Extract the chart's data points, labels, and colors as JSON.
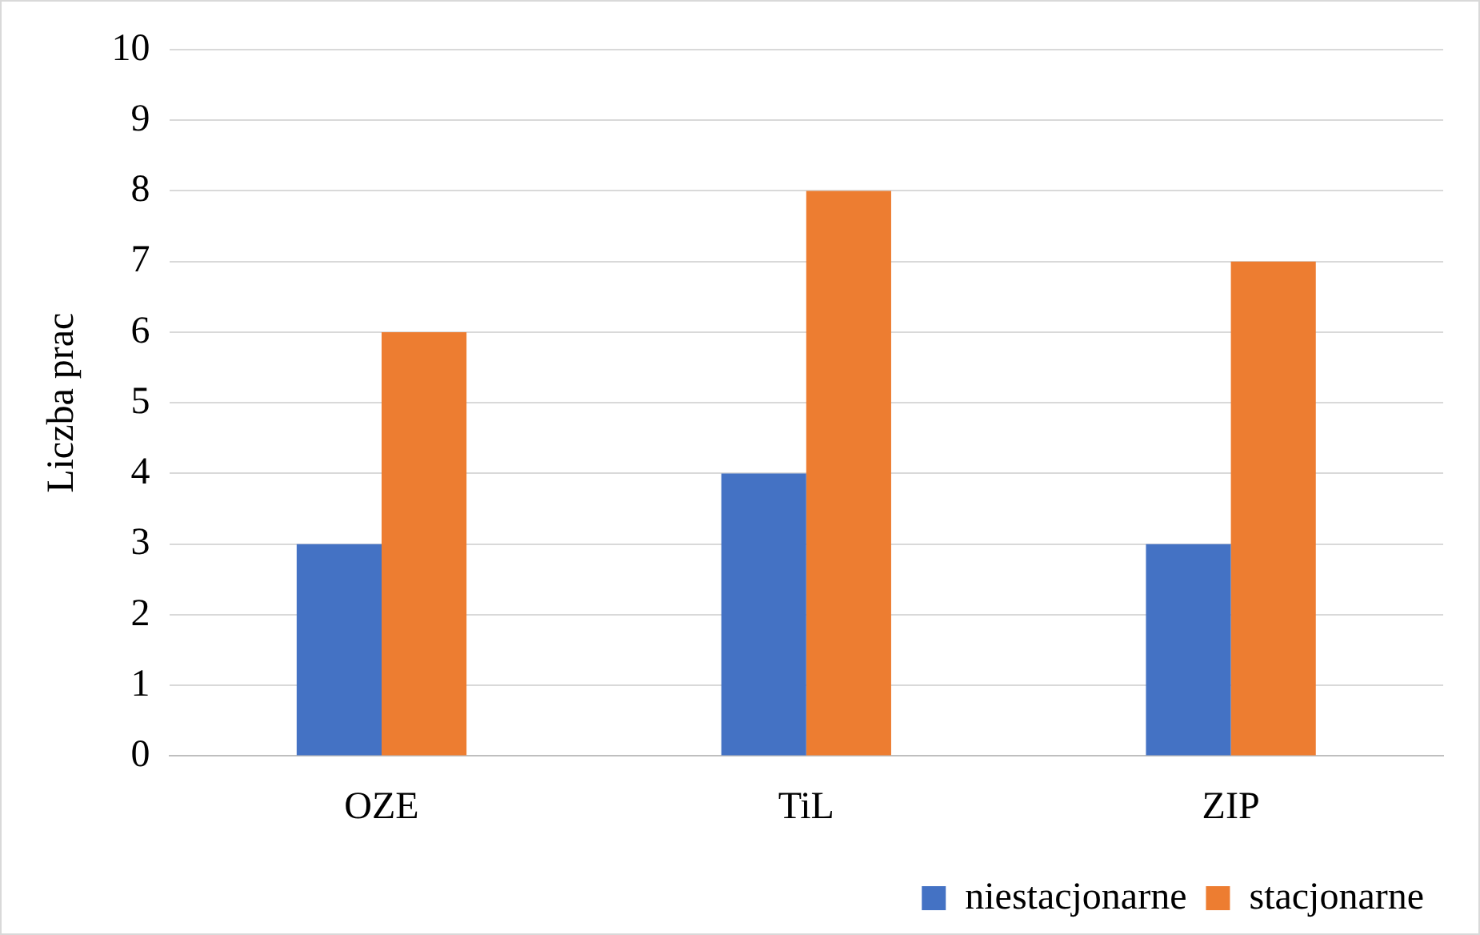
{
  "chart_data": {
    "type": "bar",
    "ylabel": "Liczba prac",
    "categories": [
      "OZE",
      "TiL",
      "ZIP"
    ],
    "series": [
      {
        "name": "niestacjonarne",
        "color": "#4472c4",
        "values": [
          3,
          4,
          3
        ]
      },
      {
        "name": "stacjonarne",
        "color": "#ed7d31",
        "values": [
          6,
          8,
          7
        ]
      }
    ],
    "ylim": [
      0,
      10
    ],
    "yticks": [
      0,
      1,
      2,
      3,
      4,
      5,
      6,
      7,
      8,
      9,
      10
    ],
    "grid": "y",
    "legend": "bottom right"
  }
}
